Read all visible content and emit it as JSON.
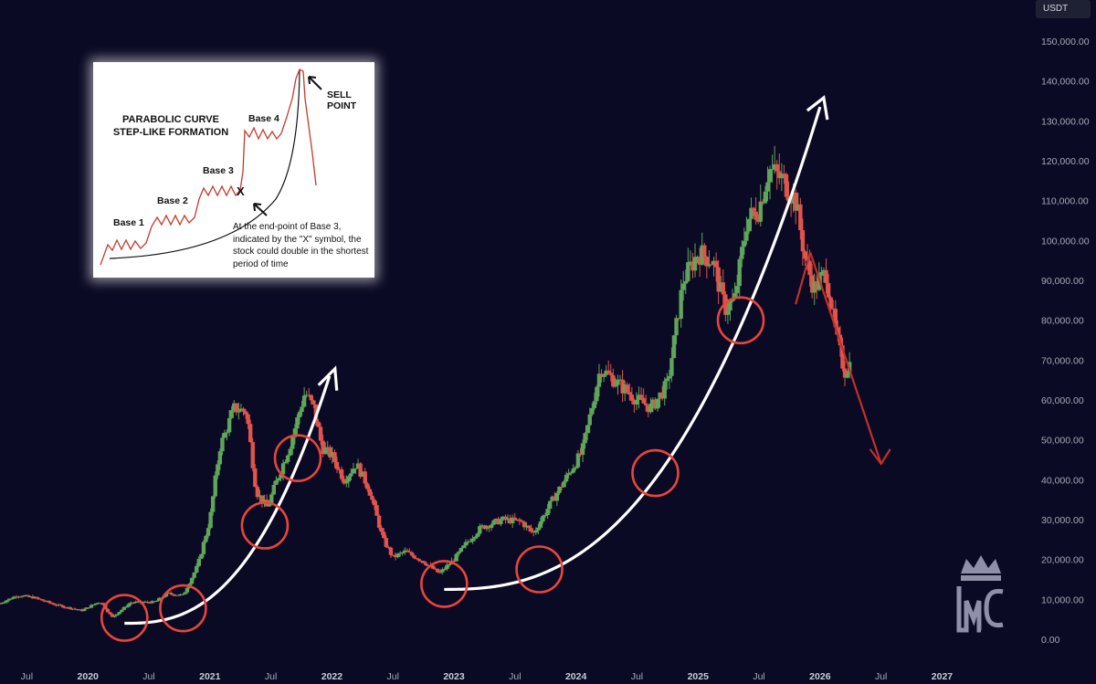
{
  "chart_data": {
    "type": "candlestick",
    "currency_label": "USDT",
    "y_ticks": [
      0,
      10000,
      20000,
      30000,
      40000,
      50000,
      60000,
      70000,
      80000,
      90000,
      100000,
      110000,
      120000,
      130000,
      140000,
      150000
    ],
    "y_tick_labels": [
      "0.00",
      "10,000.00",
      "20,000.00",
      "30,000.00",
      "40,000.00",
      "50,000.00",
      "60,000.00",
      "70,000.00",
      "80,000.00",
      "90,000.00",
      "100,000.00",
      "110,000.00",
      "120,000.00",
      "130,000.00",
      "140,000.00",
      "150,000.00"
    ],
    "ylim": [
      0,
      150000
    ],
    "x_ticks": [
      {
        "label": "Jul",
        "date": 2019.5,
        "year": false
      },
      {
        "label": "2020",
        "date": 2020.0,
        "year": true
      },
      {
        "label": "Jul",
        "date": 2020.5,
        "year": false
      },
      {
        "label": "2021",
        "date": 2021.0,
        "year": true
      },
      {
        "label": "Jul",
        "date": 2021.5,
        "year": false
      },
      {
        "label": "2022",
        "date": 2022.0,
        "year": true
      },
      {
        "label": "Jul",
        "date": 2022.5,
        "year": false
      },
      {
        "label": "2023",
        "date": 2023.0,
        "year": true
      },
      {
        "label": "Jul",
        "date": 2023.5,
        "year": false
      },
      {
        "label": "2024",
        "date": 2024.0,
        "year": true
      },
      {
        "label": "Jul",
        "date": 2024.5,
        "year": false
      },
      {
        "label": "2025",
        "date": 2025.0,
        "year": true
      },
      {
        "label": "Jul",
        "date": 2025.5,
        "year": false
      },
      {
        "label": "2026",
        "date": 2026.0,
        "year": true
      },
      {
        "label": "Jul",
        "date": 2026.5,
        "year": false
      },
      {
        "label": "2027",
        "date": 2027.0,
        "year": true
      }
    ],
    "xlim": [
      2019.28,
      2027.7
    ],
    "weekly_closes": [
      {
        "date": 2019.28,
        "close": 9000
      },
      {
        "date": 2019.42,
        "close": 11000
      },
      {
        "date": 2019.55,
        "close": 10500
      },
      {
        "date": 2019.75,
        "close": 8500
      },
      {
        "date": 2019.95,
        "close": 7200
      },
      {
        "date": 2020.1,
        "close": 9500
      },
      {
        "date": 2020.2,
        "close": 5500
      },
      {
        "date": 2020.35,
        "close": 9200
      },
      {
        "date": 2020.55,
        "close": 9300
      },
      {
        "date": 2020.65,
        "close": 11500
      },
      {
        "date": 2020.78,
        "close": 11000
      },
      {
        "date": 2020.9,
        "close": 18500
      },
      {
        "date": 2021.0,
        "close": 30000
      },
      {
        "date": 2021.08,
        "close": 48000
      },
      {
        "date": 2021.2,
        "close": 58000
      },
      {
        "date": 2021.3,
        "close": 57000
      },
      {
        "date": 2021.38,
        "close": 37000
      },
      {
        "date": 2021.47,
        "close": 33000
      },
      {
        "date": 2021.55,
        "close": 40000
      },
      {
        "date": 2021.65,
        "close": 48000
      },
      {
        "date": 2021.78,
        "close": 62000
      },
      {
        "date": 2021.85,
        "close": 58000
      },
      {
        "date": 2021.92,
        "close": 48000
      },
      {
        "date": 2022.0,
        "close": 46000
      },
      {
        "date": 2022.1,
        "close": 40000
      },
      {
        "date": 2022.2,
        "close": 44000
      },
      {
        "date": 2022.3,
        "close": 38000
      },
      {
        "date": 2022.42,
        "close": 25000
      },
      {
        "date": 2022.5,
        "close": 20500
      },
      {
        "date": 2022.6,
        "close": 22000
      },
      {
        "date": 2022.75,
        "close": 19500
      },
      {
        "date": 2022.88,
        "close": 16500
      },
      {
        "date": 2023.0,
        "close": 20000
      },
      {
        "date": 2023.1,
        "close": 24000
      },
      {
        "date": 2023.22,
        "close": 28000
      },
      {
        "date": 2023.4,
        "close": 30000
      },
      {
        "date": 2023.55,
        "close": 29500
      },
      {
        "date": 2023.65,
        "close": 26500
      },
      {
        "date": 2023.8,
        "close": 34500
      },
      {
        "date": 2023.95,
        "close": 42000
      },
      {
        "date": 2024.05,
        "close": 47000
      },
      {
        "date": 2024.2,
        "close": 68000
      },
      {
        "date": 2024.35,
        "close": 64000
      },
      {
        "date": 2024.5,
        "close": 60000
      },
      {
        "date": 2024.62,
        "close": 58000
      },
      {
        "date": 2024.75,
        "close": 64000
      },
      {
        "date": 2024.88,
        "close": 90000
      },
      {
        "date": 2025.0,
        "close": 97000
      },
      {
        "date": 2025.12,
        "close": 95000
      },
      {
        "date": 2025.22,
        "close": 83000
      },
      {
        "date": 2025.3,
        "close": 85000
      },
      {
        "date": 2025.4,
        "close": 105000
      },
      {
        "date": 2025.5,
        "close": 108000
      },
      {
        "date": 2025.58,
        "close": 118000
      },
      {
        "date": 2025.7,
        "close": 115000
      },
      {
        "date": 2025.8,
        "close": 110000
      },
      {
        "date": 2025.88,
        "close": 95000
      },
      {
        "date": 2025.95,
        "close": 88000
      },
      {
        "date": 2026.05,
        "close": 92000
      },
      {
        "date": 2026.12,
        "close": 78000
      },
      {
        "date": 2026.2,
        "close": 67000
      },
      {
        "date": 2026.26,
        "close": 70000
      }
    ],
    "highlight_circles_dates": [
      2020.3,
      2020.78,
      2021.45,
      2021.72,
      2022.92,
      2023.7,
      2024.65,
      2025.35
    ],
    "grid": false,
    "legend": "none"
  },
  "inset": {
    "title_line1": "PARABOLIC CURVE",
    "title_line2": "STEP-LIKE FORMATION",
    "base1": "Base 1",
    "base2": "Base 2",
    "base3": "Base 3",
    "base4": "Base 4",
    "sell_point": "SELL POINT",
    "x_symbol": "X",
    "note": "At the end-point of Base 3, indicated by the \"X\" symbol, the stock could double in the shortest period of time"
  },
  "logo_text": "MC",
  "colors": {
    "background": "#0b0a24",
    "up_candle": "#5fa55a",
    "down_candle": "#e0544c",
    "curve": "#ffffff",
    "circle": "#e8453c",
    "down_arrow": "#c0312a"
  }
}
